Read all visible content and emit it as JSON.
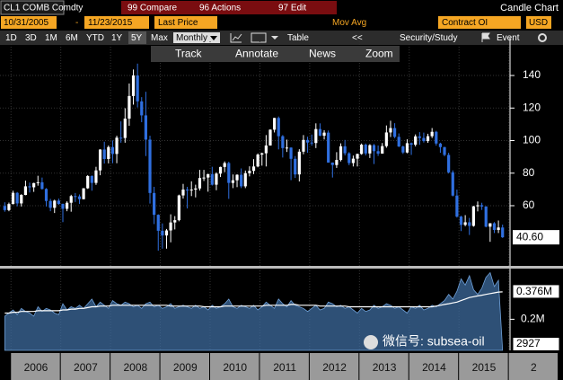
{
  "ui": {
    "security": "CL1 COMB Comdty",
    "menu": [
      "99 Compare",
      "96 Actions",
      "97 Edit"
    ],
    "chart_type": "Candle Chart",
    "start_date": "10/31/2005",
    "dash": "-",
    "end_date": "11/23/2015",
    "field": "Last Price",
    "study": "Mov Avg",
    "lower_field": "Contract OI",
    "currency": "USD",
    "periods": [
      "1D",
      "3D",
      "1M",
      "6M",
      "YTD",
      "1Y",
      "5Y",
      "Max"
    ],
    "frequency": "Monthly",
    "table": "Table",
    "back": "<<",
    "security_study": "Security/Study",
    "event": "Event",
    "tools": [
      "Track",
      "Annotate",
      "News",
      "Zoom"
    ],
    "watermark": "微信号: subsea-oil"
  },
  "chart_data": [
    {
      "type": "candlestick",
      "up_color": "#ffffff",
      "down_color": "#2f6fe0",
      "grid": true,
      "ylim": [
        23,
        161
      ],
      "yticks": [
        60,
        80,
        100,
        120,
        140
      ],
      "last_price": {
        "value": 40.6,
        "label": "40.60"
      },
      "x_labels": [
        "2006",
        "2007",
        "2008",
        "2009",
        "2010",
        "2011",
        "2012",
        "2013",
        "2014",
        "2015",
        "2"
      ],
      "candles": [
        [
          59.8,
          62.1,
          56.3,
          57.3
        ],
        [
          57.3,
          61.9,
          56.6,
          61.0
        ],
        [
          61.0,
          69.2,
          60.8,
          67.9
        ],
        [
          67.9,
          68.4,
          59.6,
          61.4
        ],
        [
          61.4,
          67.1,
          59.5,
          66.6
        ],
        [
          66.6,
          75.4,
          66.4,
          71.9
        ],
        [
          71.9,
          74.2,
          68.1,
          71.3
        ],
        [
          71.3,
          74.1,
          68.5,
          73.9
        ],
        [
          73.9,
          78.4,
          72.3,
          74.4
        ],
        [
          74.4,
          77.3,
          69.9,
          70.3
        ],
        [
          70.3,
          70.8,
          59.5,
          62.9
        ],
        [
          62.9,
          64.2,
          56.6,
          58.7
        ],
        [
          58.7,
          63.7,
          55.5,
          63.1
        ],
        [
          63.1,
          64.4,
          60.5,
          61.1
        ],
        [
          61.1,
          61.3,
          49.9,
          58.1
        ],
        [
          58.1,
          62.7,
          56.6,
          61.8
        ],
        [
          61.8,
          66.7,
          56.3,
          65.9
        ],
        [
          65.9,
          67.8,
          62.3,
          65.7
        ],
        [
          65.7,
          66.9,
          61.1,
          64.0
        ],
        [
          64.0,
          70.8,
          63.9,
          70.7
        ],
        [
          70.7,
          78.8,
          70.3,
          78.2
        ],
        [
          78.2,
          78.7,
          69.2,
          74.0
        ],
        [
          74.0,
          83.9,
          72.8,
          81.7
        ],
        [
          81.7,
          94.7,
          78.7,
          94.5
        ],
        [
          94.5,
          99.3,
          85.9,
          88.7
        ],
        [
          88.7,
          97.0,
          86.0,
          96.0
        ],
        [
          96.0,
          100.1,
          86.1,
          91.8
        ],
        [
          91.8,
          103.0,
          86.1,
          101.8
        ],
        [
          101.8,
          111.8,
          98.7,
          101.6
        ],
        [
          101.6,
          119.9,
          98.7,
          113.5
        ],
        [
          113.5,
          135.1,
          109.1,
          127.4
        ],
        [
          127.4,
          143.7,
          122.1,
          140.0
        ],
        [
          140.0,
          147.3,
          120.4,
          124.1
        ],
        [
          124.1,
          126.7,
          111.3,
          115.5
        ],
        [
          115.5,
          130.0,
          90.5,
          100.6
        ],
        [
          100.6,
          103.0,
          61.3,
          67.8
        ],
        [
          67.8,
          71.6,
          48.7,
          54.4
        ],
        [
          54.4,
          54.7,
          32.4,
          44.6
        ],
        [
          44.6,
          49.1,
          33.6,
          41.7
        ],
        [
          41.7,
          45.7,
          33.6,
          44.8
        ],
        [
          44.8,
          54.7,
          37.5,
          49.7
        ],
        [
          49.7,
          53.6,
          45.4,
          51.1
        ],
        [
          51.1,
          66.8,
          50.4,
          66.3
        ],
        [
          66.3,
          73.4,
          64.4,
          69.9
        ],
        [
          69.9,
          71.6,
          58.3,
          69.5
        ],
        [
          69.5,
          75.0,
          65.9,
          69.9
        ],
        [
          69.9,
          72.9,
          65.1,
          70.6
        ],
        [
          70.6,
          82.0,
          69.3,
          77.0
        ],
        [
          77.0,
          82.0,
          75.2,
          77.3
        ],
        [
          77.3,
          79.6,
          68.6,
          79.4
        ],
        [
          79.4,
          83.9,
          72.4,
          72.9
        ],
        [
          72.9,
          80.5,
          69.5,
          79.7
        ],
        [
          79.7,
          84.0,
          77.6,
          83.8
        ],
        [
          83.8,
          87.2,
          80.6,
          86.2
        ],
        [
          86.2,
          87.0,
          64.2,
          74.0
        ],
        [
          74.0,
          79.2,
          70.8,
          75.6
        ],
        [
          75.6,
          79.3,
          71.4,
          79.0
        ],
        [
          79.0,
          82.9,
          70.8,
          71.9
        ],
        [
          71.9,
          81.6,
          70.8,
          80.0
        ],
        [
          80.0,
          84.2,
          78.0,
          81.4
        ],
        [
          81.4,
          88.6,
          79.4,
          84.1
        ],
        [
          84.1,
          92.1,
          83.6,
          91.4
        ],
        [
          91.4,
          92.6,
          84.6,
          92.2
        ],
        [
          92.2,
          103.4,
          84.1,
          97.0
        ],
        [
          97.0,
          107.0,
          96.9,
          106.7
        ],
        [
          106.7,
          114.0,
          105.0,
          113.9
        ],
        [
          113.9,
          114.8,
          94.6,
          102.7
        ],
        [
          102.7,
          103.4,
          89.6,
          95.4
        ],
        [
          95.4,
          100.6,
          93.0,
          95.7
        ],
        [
          95.7,
          95.9,
          75.7,
          88.8
        ],
        [
          88.8,
          90.5,
          77.1,
          79.2
        ],
        [
          79.2,
          94.7,
          74.9,
          93.2
        ],
        [
          93.2,
          103.4,
          91.6,
          100.4
        ],
        [
          100.4,
          102.4,
          92.5,
          98.8
        ],
        [
          98.8,
          103.7,
          96.9,
          98.5
        ],
        [
          98.5,
          110.6,
          95.4,
          107.1
        ],
        [
          107.1,
          110.6,
          102.7,
          103.0
        ],
        [
          103.0,
          106.4,
          100.7,
          104.9
        ],
        [
          104.9,
          106.2,
          86.4,
          86.5
        ],
        [
          86.5,
          86.6,
          77.3,
          85.0
        ],
        [
          85.0,
          92.9,
          83.2,
          88.1
        ],
        [
          88.1,
          98.3,
          87.2,
          96.5
        ],
        [
          96.5,
          100.4,
          90.9,
          92.2
        ],
        [
          92.2,
          92.9,
          84.9,
          86.2
        ],
        [
          86.2,
          90.8,
          84.1,
          88.9
        ],
        [
          88.9,
          92.0,
          84.1,
          91.8
        ],
        [
          91.8,
          98.2,
          91.3,
          97.5
        ],
        [
          97.5,
          98.2,
          90.9,
          92.1
        ],
        [
          92.1,
          97.8,
          89.3,
          97.2
        ],
        [
          97.2,
          97.9,
          85.6,
          93.5
        ],
        [
          93.5,
          97.0,
          90.6,
          92.0
        ],
        [
          92.0,
          98.5,
          92.0,
          96.6
        ],
        [
          96.6,
          109.3,
          95.6,
          105.0
        ],
        [
          105.0,
          112.2,
          102.2,
          107.7
        ],
        [
          107.7,
          110.7,
          101.5,
          102.3
        ],
        [
          102.3,
          104.4,
          96.0,
          96.4
        ],
        [
          96.4,
          96.9,
          91.8,
          92.7
        ],
        [
          92.7,
          100.8,
          92.2,
          98.4
        ],
        [
          98.4,
          98.8,
          91.2,
          97.5
        ],
        [
          97.5,
          103.8,
          96.4,
          102.6
        ],
        [
          102.6,
          105.2,
          97.4,
          101.6
        ],
        [
          101.6,
          104.9,
          98.8,
          99.7
        ],
        [
          99.7,
          104.2,
          98.6,
          102.7
        ],
        [
          102.7,
          107.7,
          101.6,
          105.4
        ],
        [
          105.4,
          106.0,
          96.9,
          98.2
        ],
        [
          98.2,
          98.7,
          92.5,
          96.0
        ],
        [
          96.0,
          96.2,
          90.4,
          91.2
        ],
        [
          91.2,
          92.5,
          79.8,
          80.5
        ],
        [
          80.5,
          81.7,
          65.7,
          66.2
        ],
        [
          66.2,
          69.9,
          52.7,
          53.3
        ],
        [
          53.3,
          53.8,
          44.4,
          48.2
        ],
        [
          48.2,
          54.2,
          47.4,
          49.8
        ],
        [
          49.8,
          52.5,
          42.0,
          47.6
        ],
        [
          47.6,
          59.9,
          47.1,
          59.6
        ],
        [
          59.6,
          62.6,
          56.5,
          60.3
        ],
        [
          60.3,
          61.8,
          57.4,
          59.5
        ],
        [
          59.5,
          59.7,
          46.7,
          47.1
        ],
        [
          47.1,
          49.3,
          37.8,
          49.2
        ],
        [
          49.2,
          49.9,
          43.2,
          45.1
        ],
        [
          45.1,
          50.9,
          43.2,
          46.6
        ],
        [
          46.6,
          48.4,
          40.2,
          40.6
        ]
      ]
    },
    {
      "type": "area",
      "ylim": [
        0,
        0.52
      ],
      "yticks": [
        {
          "value": 0.2,
          "label": "0.2M"
        }
      ],
      "series": [
        {
          "type": "area",
          "color": "#3d6b9e",
          "last": {
            "value": 0.002927,
            "label": "2927"
          },
          "values": [
            0.22,
            0.24,
            0.26,
            0.23,
            0.27,
            0.25,
            0.24,
            0.22,
            0.28,
            0.25,
            0.27,
            0.26,
            0.24,
            0.23,
            0.3,
            0.26,
            0.28,
            0.27,
            0.29,
            0.27,
            0.3,
            0.33,
            0.28,
            0.31,
            0.29,
            0.27,
            0.32,
            0.3,
            0.29,
            0.31,
            0.3,
            0.28,
            0.29,
            0.27,
            0.3,
            0.31,
            0.28,
            0.29,
            0.27,
            0.28,
            0.3,
            0.27,
            0.28,
            0.29,
            0.28,
            0.27,
            0.29,
            0.27,
            0.28,
            0.26,
            0.29,
            0.27,
            0.28,
            0.3,
            0.33,
            0.28,
            0.27,
            0.29,
            0.28,
            0.27,
            0.29,
            0.26,
            0.28,
            0.31,
            0.29,
            0.27,
            0.33,
            0.3,
            0.28,
            0.32,
            0.29,
            0.28,
            0.27,
            0.25,
            0.27,
            0.29,
            0.26,
            0.27,
            0.31,
            0.3,
            0.28,
            0.29,
            0.27,
            0.28,
            0.26,
            0.24,
            0.27,
            0.25,
            0.26,
            0.29,
            0.27,
            0.28,
            0.3,
            0.29,
            0.27,
            0.28,
            0.26,
            0.24,
            0.28,
            0.27,
            0.29,
            0.26,
            0.27,
            0.29,
            0.28,
            0.3,
            0.32,
            0.36,
            0.33,
            0.38,
            0.46,
            0.42,
            0.48,
            0.39,
            0.36,
            0.4,
            0.47,
            0.5,
            0.41,
            0.45,
            0.002927
          ]
        },
        {
          "type": "line",
          "color": "#ffffff",
          "last": {
            "value": 0.376,
            "label": "0.376M"
          },
          "values": [
            0.24,
            0.24,
            0.245,
            0.245,
            0.25,
            0.25,
            0.25,
            0.25,
            0.255,
            0.255,
            0.255,
            0.255,
            0.255,
            0.255,
            0.26,
            0.26,
            0.265,
            0.265,
            0.27,
            0.27,
            0.275,
            0.28,
            0.28,
            0.285,
            0.285,
            0.285,
            0.29,
            0.29,
            0.29,
            0.29,
            0.29,
            0.29,
            0.29,
            0.29,
            0.29,
            0.29,
            0.29,
            0.29,
            0.29,
            0.29,
            0.285,
            0.285,
            0.285,
            0.285,
            0.285,
            0.285,
            0.285,
            0.285,
            0.28,
            0.28,
            0.28,
            0.28,
            0.28,
            0.285,
            0.285,
            0.285,
            0.285,
            0.285,
            0.285,
            0.285,
            0.285,
            0.285,
            0.285,
            0.29,
            0.29,
            0.29,
            0.29,
            0.29,
            0.29,
            0.295,
            0.295,
            0.29,
            0.29,
            0.29,
            0.29,
            0.29,
            0.285,
            0.285,
            0.285,
            0.285,
            0.285,
            0.285,
            0.285,
            0.28,
            0.28,
            0.28,
            0.28,
            0.28,
            0.28,
            0.28,
            0.28,
            0.28,
            0.28,
            0.28,
            0.28,
            0.28,
            0.28,
            0.28,
            0.28,
            0.28,
            0.28,
            0.28,
            0.28,
            0.28,
            0.285,
            0.29,
            0.295,
            0.3,
            0.305,
            0.31,
            0.32,
            0.33,
            0.34,
            0.345,
            0.35,
            0.355,
            0.36,
            0.365,
            0.37,
            0.375,
            0.376
          ]
        }
      ]
    }
  ]
}
